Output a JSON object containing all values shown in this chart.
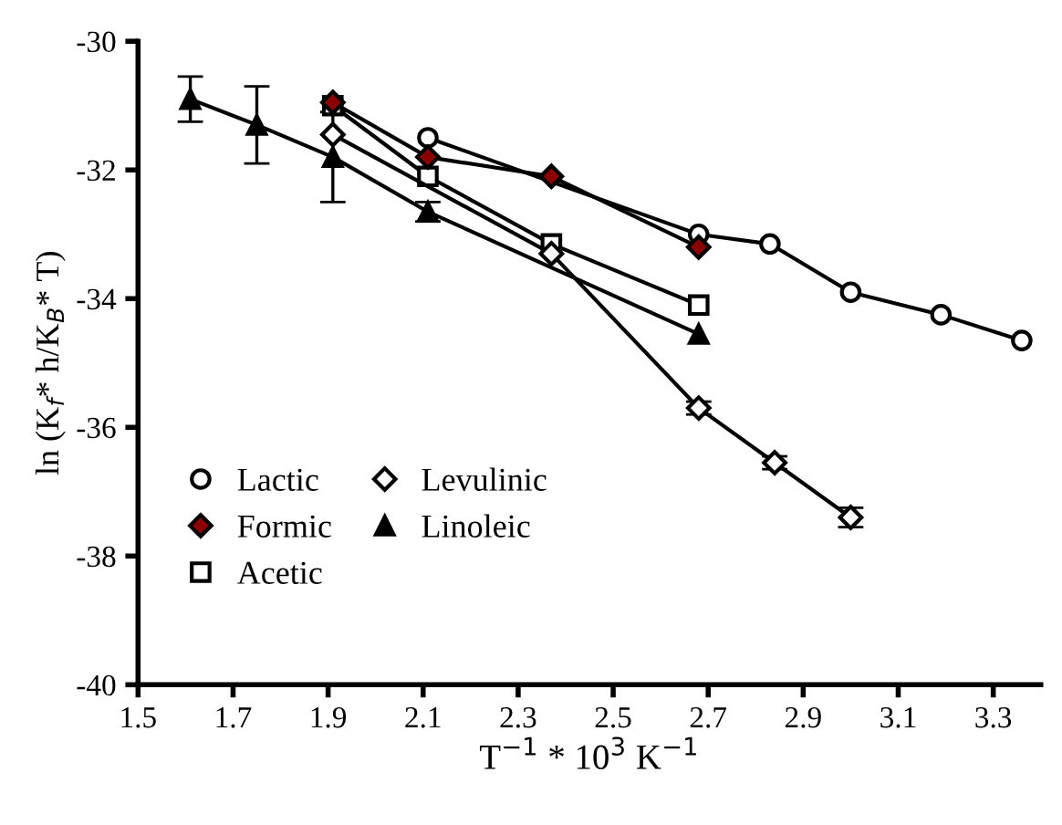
{
  "chart_data": {
    "type": "line",
    "xlabel": "T$^{−1}$ * 10$^{3}$ K$^{−1}$",
    "ylabel": "ln (K$_{f}$* h/K$_{B}$* T)",
    "xlim": [
      1.5,
      3.4
    ],
    "xticks": [
      1.5,
      1.7,
      1.9,
      2.1,
      2.3,
      2.5,
      2.7,
      2.9,
      3.1,
      3.3
    ],
    "ylim": [
      -40,
      -30
    ],
    "yticks": [
      -40,
      -38,
      -36,
      -34,
      -32,
      -30
    ],
    "grid": false,
    "legend": "bottom left",
    "line_style": "solid",
    "series": [
      {
        "name": "Lactic",
        "color": "#000000",
        "marker": "circle",
        "x": [
          2.11,
          2.37,
          2.68,
          2.83,
          3.0,
          3.19,
          3.36
        ],
        "values": [
          -31.5,
          null,
          -33.0,
          -33.15,
          -33.9,
          -34.25,
          -34.65
        ]
      },
      {
        "name": "Formic",
        "color": "#8b0000",
        "marker": "diamond",
        "x": [
          1.91,
          2.11,
          2.37,
          2.68
        ],
        "values": [
          -30.95,
          -31.8,
          -32.1,
          -33.2
        ]
      },
      {
        "name": "Acetic",
        "color": "#000000",
        "marker": "square",
        "x": [
          1.91,
          2.11,
          2.37,
          2.68
        ],
        "values": [
          -31.0,
          -32.1,
          -33.15,
          -34.1
        ]
      },
      {
        "name": "Levulinic",
        "color": "#000000",
        "marker": "diamond",
        "x": [
          1.91,
          2.11,
          2.37,
          2.68,
          2.84,
          3.0
        ],
        "values": [
          -31.45,
          null,
          -33.3,
          -35.7,
          -36.55,
          -37.4
        ],
        "errors": [
          null,
          null,
          null,
          0.1,
          0.1,
          0.15
        ]
      },
      {
        "name": "Linoleic",
        "color": "#000000",
        "marker": "triangle",
        "x": [
          1.61,
          1.75,
          1.91,
          2.11,
          2.68
        ],
        "values": [
          -30.9,
          -31.3,
          -31.8,
          -32.65,
          -34.55
        ],
        "errors": [
          0.35,
          0.6,
          0.7,
          0.15,
          null
        ]
      }
    ]
  }
}
